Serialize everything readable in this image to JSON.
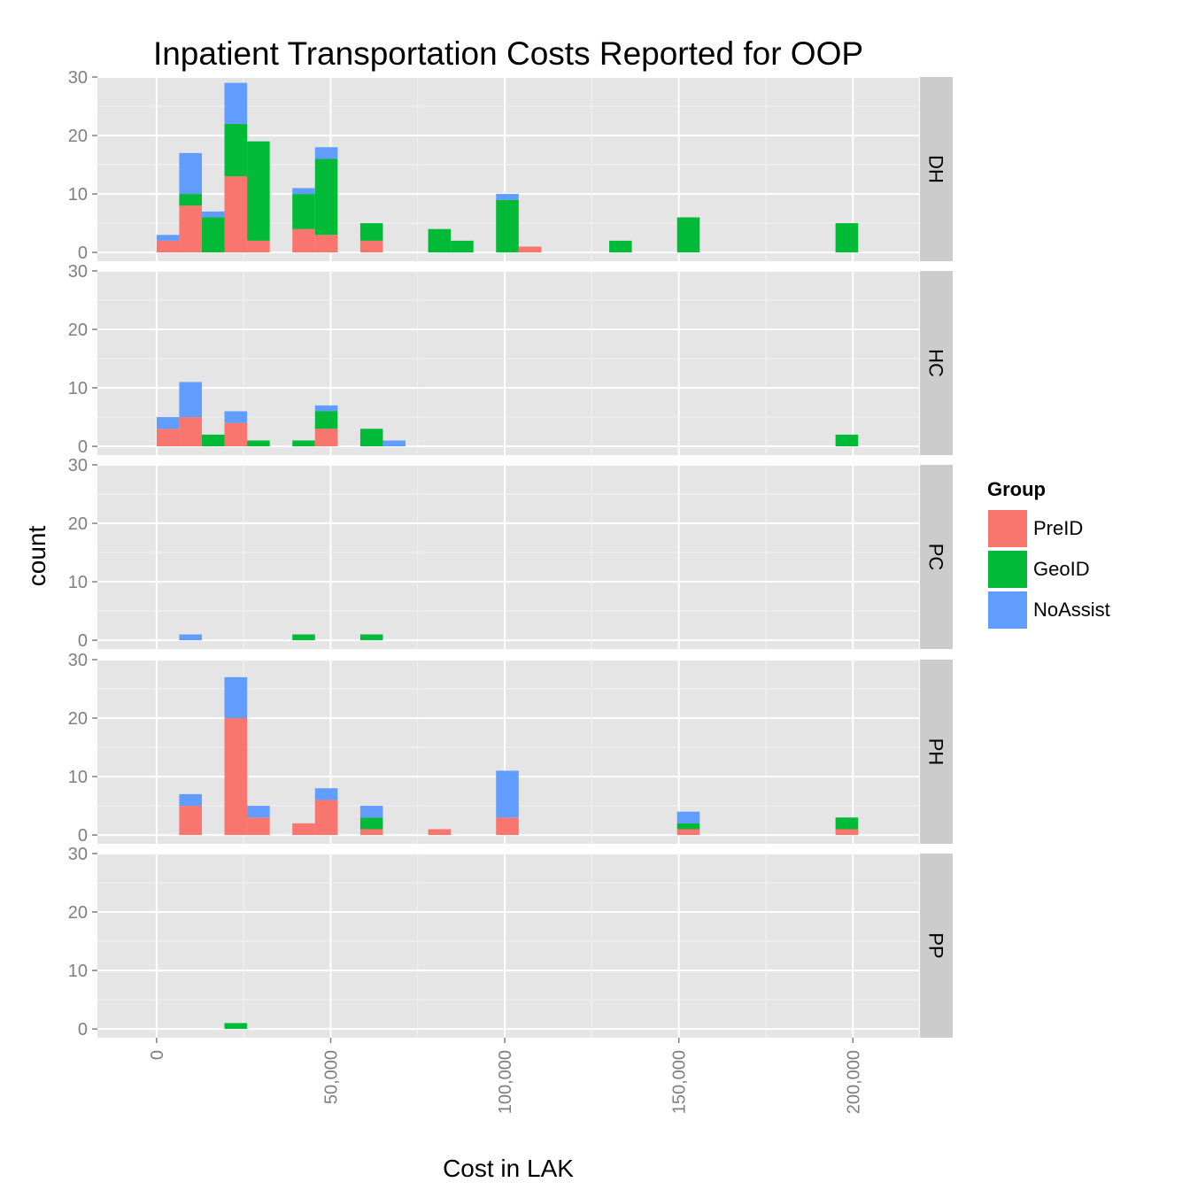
{
  "chart_data": {
    "type": "bar",
    "subtype": "stacked-histogram-faceted",
    "title": "Inpatient Transportation Costs Reported for OOP",
    "xlabel": "Cost in LAK",
    "ylabel": "count",
    "xlim": [
      -17000,
      219000
    ],
    "ylim": [
      -1.5,
      30
    ],
    "binwidth": 6500,
    "x_ticks": [
      0,
      50000,
      100000,
      150000,
      200000
    ],
    "x_tick_labels": [
      "0",
      "50,000",
      "100,000",
      "150,000",
      "200,000"
    ],
    "y_ticks": [
      0,
      10,
      20,
      30
    ],
    "y_tick_labels": [
      "0",
      "10",
      "20",
      "30"
    ],
    "legend": {
      "title": "Group",
      "position": "right",
      "items": [
        {
          "name": "PreID",
          "color": "#F8766D"
        },
        {
          "name": "GeoID",
          "color": "#00BA38"
        },
        {
          "name": "NoAssist",
          "color": "#619CFF"
        }
      ]
    },
    "stack_order": [
      "PreID",
      "GeoID",
      "NoAssist"
    ],
    "facets": [
      {
        "label": "DH",
        "bars": [
          {
            "x": 3250,
            "PreID": 2,
            "GeoID": 0,
            "NoAssist": 1
          },
          {
            "x": 9750,
            "PreID": 8,
            "GeoID": 2,
            "NoAssist": 7
          },
          {
            "x": 16250,
            "PreID": 0,
            "GeoID": 6,
            "NoAssist": 1
          },
          {
            "x": 22750,
            "PreID": 13,
            "GeoID": 9,
            "NoAssist": 7
          },
          {
            "x": 29250,
            "PreID": 2,
            "GeoID": 17,
            "NoAssist": 0
          },
          {
            "x": 42250,
            "PreID": 4,
            "GeoID": 6,
            "NoAssist": 1
          },
          {
            "x": 48750,
            "PreID": 3,
            "GeoID": 13,
            "NoAssist": 2
          },
          {
            "x": 61750,
            "PreID": 2,
            "GeoID": 3,
            "NoAssist": 0
          },
          {
            "x": 81250,
            "PreID": 0,
            "GeoID": 4,
            "NoAssist": 0
          },
          {
            "x": 87750,
            "PreID": 0,
            "GeoID": 2,
            "NoAssist": 0
          },
          {
            "x": 100750,
            "PreID": 0,
            "GeoID": 9,
            "NoAssist": 1
          },
          {
            "x": 107250,
            "PreID": 1,
            "GeoID": 0,
            "NoAssist": 0
          },
          {
            "x": 133250,
            "PreID": 0,
            "GeoID": 2,
            "NoAssist": 0
          },
          {
            "x": 152750,
            "PreID": 0,
            "GeoID": 6,
            "NoAssist": 0
          },
          {
            "x": 198250,
            "PreID": 0,
            "GeoID": 5,
            "NoAssist": 0
          }
        ]
      },
      {
        "label": "HC",
        "bars": [
          {
            "x": 3250,
            "PreID": 3,
            "GeoID": 0,
            "NoAssist": 2
          },
          {
            "x": 9750,
            "PreID": 5,
            "GeoID": 0,
            "NoAssist": 6
          },
          {
            "x": 16250,
            "PreID": 0,
            "GeoID": 2,
            "NoAssist": 0
          },
          {
            "x": 22750,
            "PreID": 4,
            "GeoID": 0,
            "NoAssist": 2
          },
          {
            "x": 29250,
            "PreID": 0,
            "GeoID": 1,
            "NoAssist": 0
          },
          {
            "x": 42250,
            "PreID": 0,
            "GeoID": 1,
            "NoAssist": 0
          },
          {
            "x": 48750,
            "PreID": 3,
            "GeoID": 3,
            "NoAssist": 1
          },
          {
            "x": 61750,
            "PreID": 0,
            "GeoID": 3,
            "NoAssist": 0
          },
          {
            "x": 68250,
            "PreID": 0,
            "GeoID": 0,
            "NoAssist": 1
          },
          {
            "x": 198250,
            "PreID": 0,
            "GeoID": 2,
            "NoAssist": 0
          }
        ]
      },
      {
        "label": "PC",
        "bars": [
          {
            "x": 9750,
            "PreID": 0,
            "GeoID": 0,
            "NoAssist": 1
          },
          {
            "x": 42250,
            "PreID": 0,
            "GeoID": 1,
            "NoAssist": 0
          },
          {
            "x": 61750,
            "PreID": 0,
            "GeoID": 1,
            "NoAssist": 0
          }
        ]
      },
      {
        "label": "PH",
        "bars": [
          {
            "x": 9750,
            "PreID": 5,
            "GeoID": 0,
            "NoAssist": 2
          },
          {
            "x": 22750,
            "PreID": 20,
            "GeoID": 0,
            "NoAssist": 7
          },
          {
            "x": 29250,
            "PreID": 3,
            "GeoID": 0,
            "NoAssist": 2
          },
          {
            "x": 42250,
            "PreID": 2,
            "GeoID": 0,
            "NoAssist": 0
          },
          {
            "x": 48750,
            "PreID": 6,
            "GeoID": 0,
            "NoAssist": 2
          },
          {
            "x": 61750,
            "PreID": 1,
            "GeoID": 2,
            "NoAssist": 2
          },
          {
            "x": 81250,
            "PreID": 1,
            "GeoID": 0,
            "NoAssist": 0
          },
          {
            "x": 100750,
            "PreID": 3,
            "GeoID": 0,
            "NoAssist": 8
          },
          {
            "x": 152750,
            "PreID": 1,
            "GeoID": 1,
            "NoAssist": 2
          },
          {
            "x": 198250,
            "PreID": 1,
            "GeoID": 2,
            "NoAssist": 0
          }
        ]
      },
      {
        "label": "PP",
        "bars": [
          {
            "x": 22750,
            "PreID": 0,
            "GeoID": 1,
            "NoAssist": 0
          }
        ]
      }
    ]
  }
}
